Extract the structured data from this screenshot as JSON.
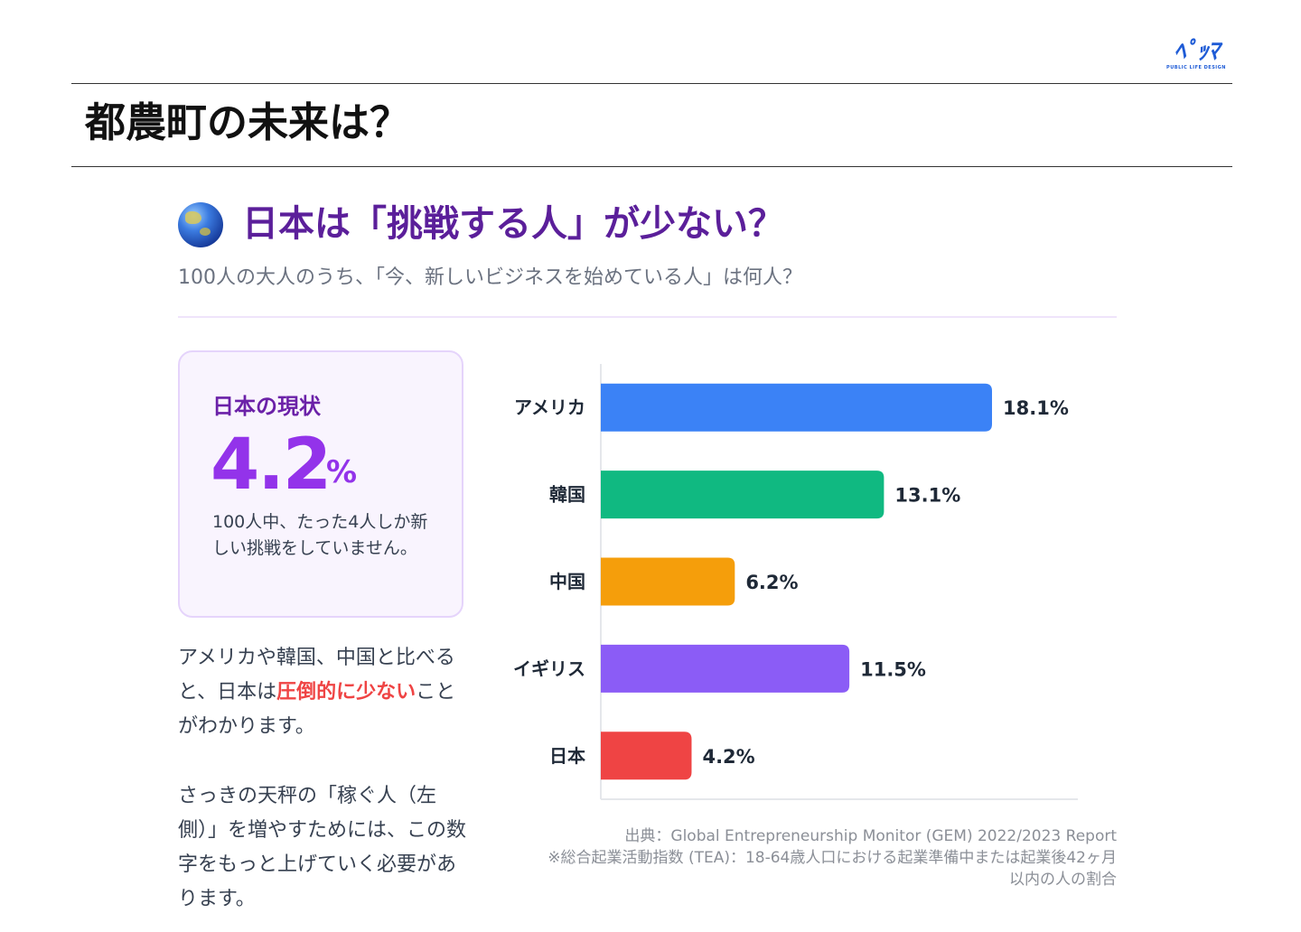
{
  "logo": {
    "mark": "ﾍﾟｯﾏ",
    "subtitle": "PUBLIC LIFE DESIGN",
    "color": "#1e5bd6"
  },
  "page_title": "都農町の未来は？",
  "section": {
    "icon": "globe-icon",
    "title": "日本は「挑戦する人」が少ない？",
    "subtitle": "100人の大人のうち、「今、新しいビジネスを始めている人」は何人？"
  },
  "card": {
    "label": "日本の現状",
    "value": "4.2",
    "unit": "%",
    "description": "100人中、たった4人しか新しい挑戦をしていません。"
  },
  "body": {
    "p1_before": "アメリカや韓国、中国と比べると、日本は",
    "p1_highlight": "圧倒的に少ない",
    "p1_after": "ことがわかります。",
    "p2": "さっきの天秤の「稼ぐ人（左側）」を増やすためには、この数字をもっと上げていく必要があります。"
  },
  "source": {
    "line1": "出典：Global Entrepreneurship Monitor (GEM) 2022/2023 Report",
    "line2": "※総合起業活動指数 (TEA)：18-64歳人口における起業準備中または起業後42ヶ月",
    "line3": "以内の人の割合"
  },
  "chart_data": {
    "type": "bar",
    "orientation": "horizontal",
    "title": "",
    "xlabel": "",
    "ylabel": "",
    "categories": [
      "アメリカ",
      "韓国",
      "中国",
      "イギリス",
      "日本"
    ],
    "values": [
      18.1,
      13.1,
      6.2,
      11.5,
      4.2
    ],
    "value_labels": [
      "18.1%",
      "13.1%",
      "6.2%",
      "11.5%",
      "4.2%"
    ],
    "colors": [
      "#3b82f6",
      "#10b981",
      "#f59e0b",
      "#8b5cf6",
      "#ef4444"
    ],
    "unit": "%",
    "xlim": [
      0,
      22
    ],
    "grid": false,
    "legend": "none"
  }
}
